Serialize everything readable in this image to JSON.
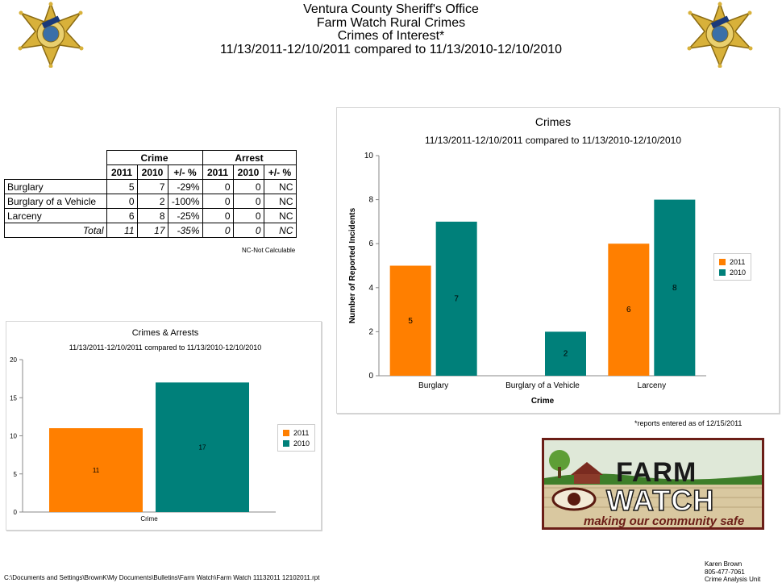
{
  "header": {
    "line1": "Ventura County Sheriff's Office",
    "line2": "Farm Watch Rural Crimes",
    "line3": "Crimes of Interest*",
    "line4": "11/13/2011-12/10/2011 compared to 11/13/2010-12/10/2010"
  },
  "badge": {
    "text_top": "SHERIFF",
    "text_bottom": "VENTURA COUNTY"
  },
  "table": {
    "group_headers": [
      "Crime",
      "Arrest"
    ],
    "sub_headers": [
      "2011",
      "2010",
      "+/- %",
      "2011",
      "2010",
      "+/- %"
    ],
    "rows": [
      {
        "label": "Burglary",
        "cells": [
          "5",
          "7",
          "-29%",
          "0",
          "0",
          "NC"
        ]
      },
      {
        "label": "Burglary of a Vehicle",
        "cells": [
          "0",
          "2",
          "-100%",
          "0",
          "0",
          "NC"
        ]
      },
      {
        "label": "Larceny",
        "cells": [
          "6",
          "8",
          "-25%",
          "0",
          "0",
          "NC"
        ]
      }
    ],
    "total": {
      "label": "Total",
      "cells": [
        "11",
        "17",
        "-35%",
        "0",
        "0",
        "NC"
      ]
    },
    "note": "NC-Not Calculable"
  },
  "colors": {
    "y2011": "#ff7f00",
    "y2010": "#00807a",
    "axis": "#888888"
  },
  "chart_data": [
    {
      "type": "bar",
      "title": "Crimes",
      "subtitle": "11/13/2011-12/10/2011 compared to 11/13/2010-12/10/2010",
      "xlabel": "Crime",
      "ylabel": "Number of Reported Incidents",
      "categories": [
        "Burglary",
        "Burglary of a Vehicle",
        "Larceny"
      ],
      "series": [
        {
          "name": "2011",
          "values": [
            5,
            0,
            6
          ],
          "labels": [
            "5",
            "",
            "6"
          ]
        },
        {
          "name": "2010",
          "values": [
            7,
            2,
            8
          ],
          "labels": [
            "7",
            "2",
            "8"
          ]
        }
      ],
      "ylim": [
        0,
        10
      ],
      "yticks": [
        "0",
        "2",
        "4",
        "6",
        "8",
        "10"
      ],
      "grid": false,
      "legend": "right"
    },
    {
      "type": "bar",
      "title": "Crimes & Arrests",
      "subtitle": "11/13/2011-12/10/2011 compared to 11/13/2010-12/10/2010",
      "xlabel": "Crime",
      "ylabel": "",
      "categories": [
        ""
      ],
      "series": [
        {
          "name": "2011",
          "values": [
            11
          ],
          "labels": [
            "11"
          ]
        },
        {
          "name": "2010",
          "values": [
            17
          ],
          "labels": [
            "17"
          ]
        }
      ],
      "ylim": [
        0,
        20
      ],
      "yticks": [
        "0",
        "5",
        "10",
        "15",
        "20"
      ],
      "grid": false,
      "legend": "right"
    }
  ],
  "reports_note": "*reports entered as of 12/15/2011",
  "logo": {
    "line1": "FARM",
    "line2": "WATCH",
    "tagline": "making our community safe"
  },
  "footer": {
    "path": "C:\\Documents and Settings\\BrownK\\My Documents\\Bulletins\\Farm Watch\\Farm Watch 11132011 12102011.rpt",
    "credit_name": "Karen Brown",
    "credit_phone": "805-477-7061",
    "credit_unit": "Crime Analysis Unit"
  }
}
